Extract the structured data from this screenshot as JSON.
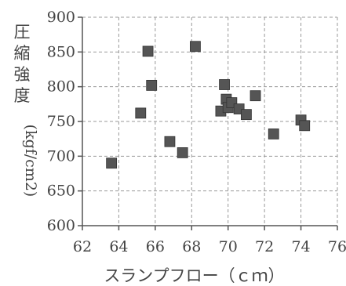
{
  "chart_data": {
    "type": "scatter",
    "title": "",
    "xlabel": "スランプフロー（ｃｍ）",
    "ylabel": "圧縮強度",
    "ylabel_unit": "(kgf/cm2)",
    "xlim": [
      62,
      76
    ],
    "ylim": [
      600,
      900
    ],
    "x_ticks": [
      62,
      64,
      66,
      68,
      70,
      72,
      74,
      76
    ],
    "y_ticks": [
      600,
      650,
      700,
      750,
      800,
      850,
      900
    ],
    "grid": true,
    "marker": "square",
    "marker_color": "#555555",
    "points": [
      {
        "x": 63.6,
        "y": 690
      },
      {
        "x": 65.2,
        "y": 762
      },
      {
        "x": 65.6,
        "y": 851
      },
      {
        "x": 65.8,
        "y": 802
      },
      {
        "x": 66.8,
        "y": 721
      },
      {
        "x": 67.5,
        "y": 705
      },
      {
        "x": 68.2,
        "y": 858
      },
      {
        "x": 69.6,
        "y": 765
      },
      {
        "x": 69.8,
        "y": 803
      },
      {
        "x": 69.9,
        "y": 782
      },
      {
        "x": 70.0,
        "y": 770
      },
      {
        "x": 70.2,
        "y": 777
      },
      {
        "x": 70.6,
        "y": 768
      },
      {
        "x": 71.0,
        "y": 760
      },
      {
        "x": 71.5,
        "y": 787
      },
      {
        "x": 72.5,
        "y": 732
      },
      {
        "x": 74.0,
        "y": 752
      },
      {
        "x": 74.2,
        "y": 744
      }
    ]
  }
}
